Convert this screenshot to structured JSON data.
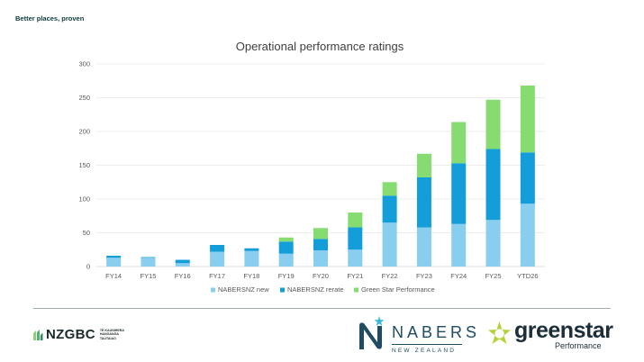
{
  "header": {
    "tagline": "Better places, proven"
  },
  "chart_data": {
    "type": "bar",
    "stacked": true,
    "title": "Operational performance ratings",
    "categories": [
      "FY14",
      "FY15",
      "FY16",
      "FY17",
      "FY18",
      "FY19",
      "FY20",
      "FY21",
      "FY22",
      "FY23",
      "FY24",
      "FY25",
      "YTD26"
    ],
    "series": [
      {
        "name": "NABERSNZ new",
        "color": "#89cdef",
        "values": [
          13,
          13,
          5,
          22,
          23,
          19,
          24,
          25,
          65,
          58,
          63,
          69,
          93
        ]
      },
      {
        "name": "NABERSNZ rerate",
        "color": "#149ed9",
        "values": [
          3,
          1,
          5,
          10,
          4,
          18,
          17,
          33,
          40,
          74,
          90,
          105,
          76
        ]
      },
      {
        "name": "Green Star Performance",
        "color": "#86dc71",
        "values": [
          0,
          0,
          0,
          0,
          0,
          6,
          16,
          22,
          20,
          35,
          61,
          73,
          99
        ]
      }
    ],
    "ylim": [
      0,
      300
    ],
    "yticks": [
      0,
      50,
      100,
      150,
      200,
      250,
      300
    ],
    "grid": true,
    "legend": "bottom"
  },
  "footer": {
    "nzgbc": {
      "name": "NZGBC",
      "sub": [
        "TE KAUNIHERA",
        "HANGANGA",
        "TAUTAIAO"
      ]
    },
    "nabers": {
      "name": "NABERS",
      "region": "NEW ZEALAND"
    },
    "greenstar": {
      "name": "greenstar",
      "sub": "Performance"
    }
  }
}
